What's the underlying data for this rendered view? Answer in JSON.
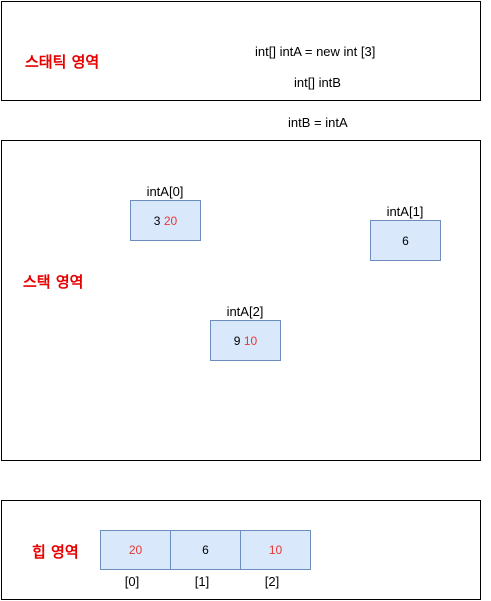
{
  "static_area": {
    "title": "스태틱 영역",
    "code_line1": "int[] intA = new int [3]",
    "code_line2": "int[] intB"
  },
  "assignment": "intB = intA",
  "stack_area": {
    "title": "스택 영역",
    "cells": [
      {
        "label": "intA[0]",
        "old_value": "3",
        "new_value": "20"
      },
      {
        "label": "intA[1]",
        "value": "6"
      },
      {
        "label": "intA[2]",
        "old_value": "9",
        "new_value": "10"
      }
    ]
  },
  "heap_area": {
    "title": "힙 영역",
    "array": [
      {
        "value": "20",
        "index": "[0]",
        "highlight": true
      },
      {
        "value": "6",
        "index": "[1]",
        "highlight": false
      },
      {
        "value": "10",
        "index": "[2]",
        "highlight": true
      }
    ]
  },
  "colors": {
    "title_red": "#e60000",
    "value_red": "#e53935",
    "cell_fill": "#dae8fc",
    "cell_border": "#6c8ebf"
  }
}
